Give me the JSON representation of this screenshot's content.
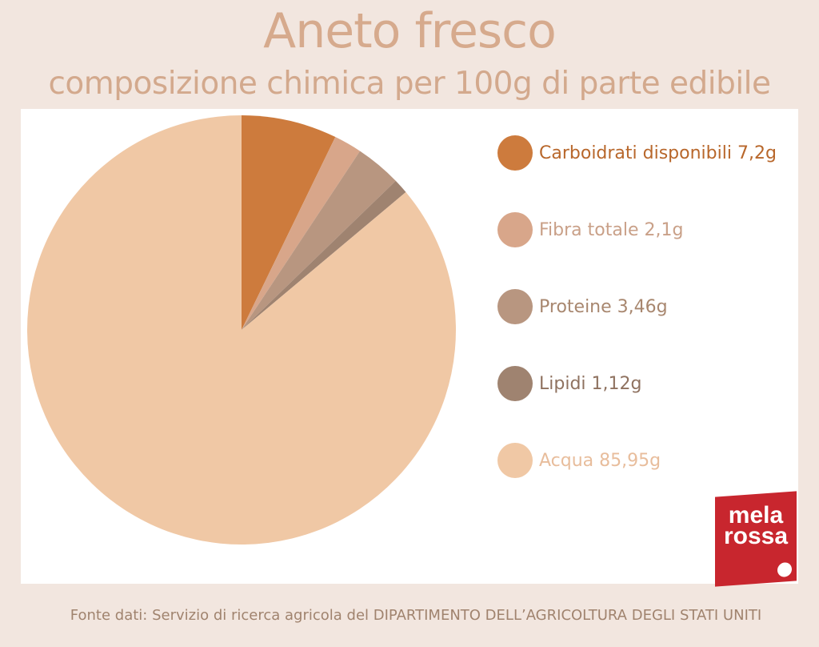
{
  "header": {
    "title": "Aneto fresco",
    "subtitle": "composizione chimica per 100g di parte edibile"
  },
  "chart_data": {
    "type": "pie",
    "slices": [
      {
        "label": "Carboidrati disponibili 7,2g",
        "value": 7.2,
        "color": "#cd7b3d",
        "text_color": "#b8672b"
      },
      {
        "label": "Fibra totale 2,1g",
        "value": 2.1,
        "color": "#d8a68a",
        "text_color": "#c9a088"
      },
      {
        "label": "Proteine 3,46g",
        "value": 3.46,
        "color": "#b89680",
        "text_color": "#a8876f"
      },
      {
        "label": "Lipidi 1,12g",
        "value": 1.12,
        "color": "#9f8370",
        "text_color": "#8f7260"
      },
      {
        "label": "Acqua  85,95g",
        "value": 85.95,
        "color": "#f0c8a5",
        "text_color": "#e8bd9c"
      }
    ]
  },
  "logo": {
    "line1": "mela",
    "line2": "rossa"
  },
  "footer": {
    "source": "Fonte dati: Servizio di ricerca agricola del DIPARTIMENTO DELL’AGRICOLTURA DEGLI STATI UNITI"
  }
}
